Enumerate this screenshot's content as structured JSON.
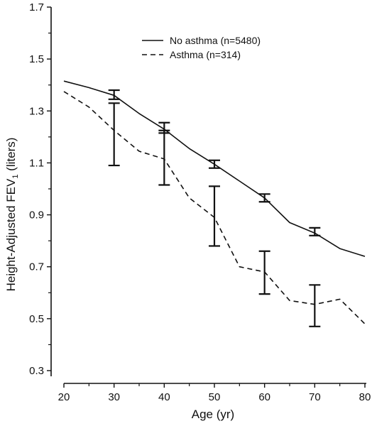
{
  "chart_data": {
    "type": "line",
    "title": "",
    "xlabel": "Age (yr)",
    "ylabel_main": "Height-Adjusted FEV",
    "ylabel_sub": "1",
    "ylabel_unit": " (liters)",
    "xlim": [
      20,
      80
    ],
    "ylim": [
      0.3,
      1.7
    ],
    "x_ticks": [
      20,
      30,
      40,
      50,
      60,
      70,
      80
    ],
    "y_ticks": [
      0.3,
      0.5,
      0.7,
      0.9,
      1.1,
      1.3,
      1.5,
      1.7
    ],
    "x_tick_labels": [
      "20",
      "30",
      "40",
      "50",
      "60",
      "70",
      "80"
    ],
    "y_tick_labels": [
      "0.3",
      "0.5",
      "0.7",
      "0.9",
      "1.1",
      "1.3",
      "1.5",
      "1.7"
    ],
    "grid": false,
    "legend_position": "top-right",
    "series": [
      {
        "name": "No asthma (n=5480)",
        "style": "solid",
        "color": "#111111",
        "x": [
          20,
          25,
          30,
          35,
          40,
          45,
          50,
          55,
          60,
          65,
          70,
          75,
          80
        ],
        "y": [
          1.415,
          1.39,
          1.36,
          1.29,
          1.23,
          1.155,
          1.095,
          1.03,
          0.965,
          0.87,
          0.83,
          0.77,
          0.74
        ],
        "error_bars": [
          {
            "x": 30,
            "low": 1.345,
            "high": 1.38
          },
          {
            "x": 40,
            "low": 1.215,
            "high": 1.255
          },
          {
            "x": 50,
            "low": 1.08,
            "high": 1.11
          },
          {
            "x": 60,
            "low": 0.95,
            "high": 0.98
          },
          {
            "x": 70,
            "low": 0.82,
            "high": 0.85
          }
        ]
      },
      {
        "name": "Asthma (n=314)",
        "style": "dashed",
        "color": "#111111",
        "x": [
          20,
          25,
          30,
          35,
          40,
          45,
          50,
          55,
          60,
          65,
          70,
          75,
          80
        ],
        "y": [
          1.375,
          1.315,
          1.225,
          1.145,
          1.115,
          0.965,
          0.89,
          0.7,
          0.68,
          0.57,
          0.555,
          0.575,
          0.48
        ],
        "error_bars": [
          {
            "x": 30,
            "low": 1.09,
            "high": 1.33
          },
          {
            "x": 40,
            "low": 1.015,
            "high": 1.225
          },
          {
            "x": 50,
            "low": 0.78,
            "high": 1.01
          },
          {
            "x": 60,
            "low": 0.595,
            "high": 0.76
          },
          {
            "x": 70,
            "low": 0.47,
            "high": 0.63
          }
        ]
      }
    ]
  }
}
